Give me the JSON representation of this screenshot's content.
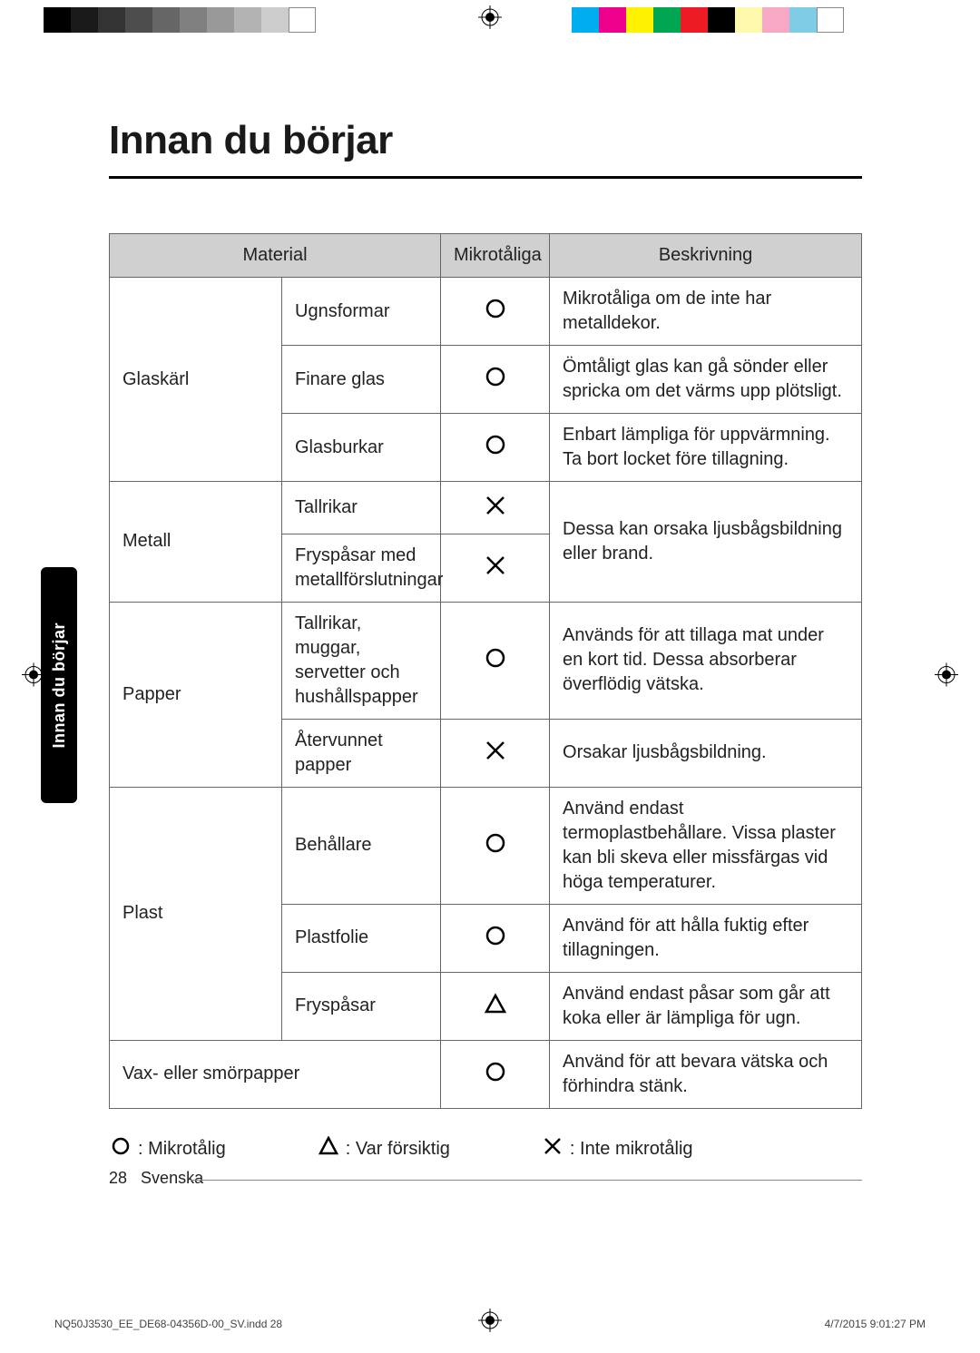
{
  "title": "Innan du börjar",
  "sidetab": "Innan du börjar",
  "table": {
    "headers": {
      "material": "Material",
      "microwave": "Mikrotåliga",
      "description": "Beskrivning"
    },
    "rows": [
      {
        "cat": "Glaskärl",
        "catRowspan": 3,
        "item": "Ugnsformar",
        "sym": "O",
        "desc": "Mikrotåliga om de inte har metalldekor."
      },
      {
        "item": "Finare glas",
        "sym": "O",
        "desc": "Ömtåligt glas kan gå sönder eller spricka om det värms upp plötsligt."
      },
      {
        "item": "Glasburkar",
        "sym": "O",
        "desc": "Enbart lämpliga för uppvärmning. Ta bort locket före tillagning."
      },
      {
        "cat": "Metall",
        "catRowspan": 2,
        "item": "Tallrikar",
        "sym": "X",
        "desc": "Dessa kan orsaka ljusbågsbildning eller brand.",
        "descRowspan": 2
      },
      {
        "item": "Fryspåsar med metallförslutningar",
        "sym": "X"
      },
      {
        "cat": "Papper",
        "catRowspan": 2,
        "item": "Tallrikar, muggar, servetter och hushållspapper",
        "sym": "O",
        "desc": "Används för att tillaga mat under en kort tid. Dessa absorberar överflödig vätska."
      },
      {
        "item": "Återvunnet papper",
        "sym": "X",
        "desc": "Orsakar ljusbågsbildning."
      },
      {
        "cat": "Plast",
        "catRowspan": 3,
        "item": "Behållare",
        "sym": "O",
        "desc": "Använd endast termoplastbehållare. Vissa plaster kan bli skeva eller missfärgas vid höga temperaturer."
      },
      {
        "item": "Plastfolie",
        "sym": "O",
        "desc": "Använd för att hålla fuktig efter tillagningen."
      },
      {
        "item": "Fryspåsar",
        "sym": "T",
        "desc": "Använd endast påsar som går att koka eller är lämpliga för ugn."
      },
      {
        "cat": "Vax- eller smörpapper",
        "catColspan": 2,
        "sym": "O",
        "desc": "Använd för att bevara vätska och förhindra stänk."
      }
    ]
  },
  "legend": {
    "safe": ": Mikrotålig",
    "caution": ": Var försiktig",
    "unsafe": ": Inte mikrotålig"
  },
  "footer": {
    "pageNum": "28",
    "lang": "Svenska",
    "indd": "NQ50J3530_EE_DE68-04356D-00_SV.indd   28",
    "date": "4/7/2015   9:01:27 PM"
  },
  "colorbars": {
    "left": [
      "#000000",
      "#1a1a1a",
      "#333333",
      "#4d4d4d",
      "#666666",
      "#808080",
      "#999999",
      "#b3b3b3",
      "#cccccc",
      "#ffffff"
    ],
    "right": [
      "#00aeef",
      "#ec008c",
      "#fff200",
      "#00a651",
      "#ed1c24",
      "#000000",
      "#fff9ae",
      "#f7a8c4",
      "#7ecce5",
      "#ffffff"
    ]
  },
  "symbols": {
    "O": {
      "stroke": "#000000",
      "strokeWidth": 2.5
    },
    "X": {
      "stroke": "#000000",
      "strokeWidth": 2.5
    },
    "T": {
      "stroke": "#000000",
      "strokeWidth": 2.5
    }
  }
}
